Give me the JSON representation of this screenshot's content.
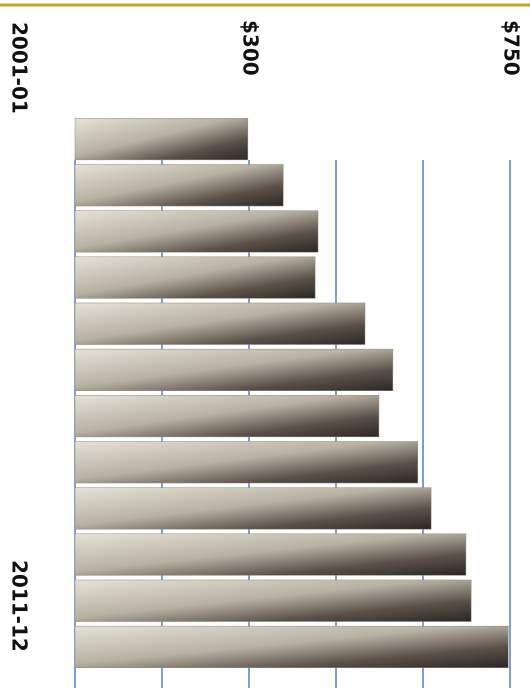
{
  "chart_data": {
    "type": "bar",
    "orientation": "horizontal",
    "categories": [
      "2001-01",
      null,
      null,
      null,
      null,
      null,
      null,
      null,
      null,
      null,
      null,
      "2011-12"
    ],
    "values": [
      298,
      359,
      419,
      414,
      500,
      548,
      524,
      591,
      614,
      674,
      683,
      747
    ],
    "color": "#8f8a7e",
    "xlim": [
      0,
      750
    ],
    "xticks": [
      0,
      150,
      {
        "value": 300,
        "label": "$300"
      },
      450,
      600,
      {
        "value": 750,
        "label": "$750"
      }
    ],
    "grid": true
  }
}
